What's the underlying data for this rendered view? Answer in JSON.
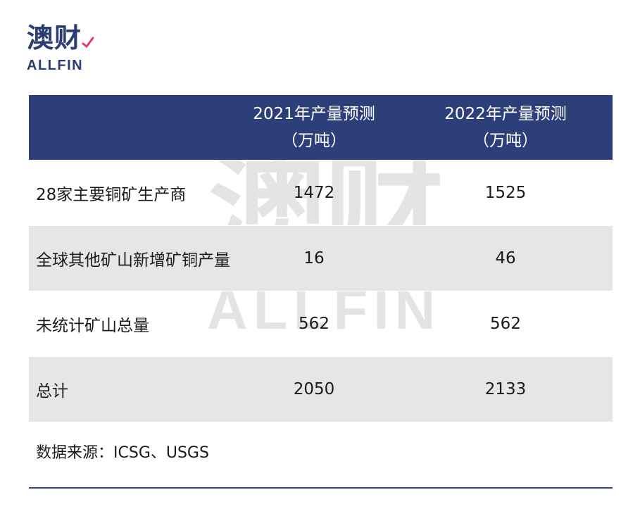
{
  "logo": {
    "cn": "澳财",
    "en": "ALLFIN",
    "accent_color": "#e23b6a",
    "brand_color": "#2c3d73"
  },
  "watermark": {
    "cn": "澳财",
    "en": "ALLFIN"
  },
  "table": {
    "header_color": "#2c3f79",
    "shade_color": "#e6e6e6",
    "headers": [
      {
        "line1": "",
        "line2": ""
      },
      {
        "line1": "2021年产量预测",
        "line2": "（万吨）"
      },
      {
        "line1": "2022年产量预测",
        "line2": "（万吨）"
      }
    ],
    "rows": [
      {
        "label": "28家主要铜矿生产商",
        "v2021": "1472",
        "v2022": "1525"
      },
      {
        "label": "全球其他矿山新增矿铜产量",
        "v2021": "16",
        "v2022": "46"
      },
      {
        "label": "未统计矿山总量",
        "v2021": "562",
        "v2022": "562"
      },
      {
        "label": "总计",
        "v2021": "2050",
        "v2022": "2133"
      }
    ]
  },
  "source": "数据来源：ICSG、USGS"
}
